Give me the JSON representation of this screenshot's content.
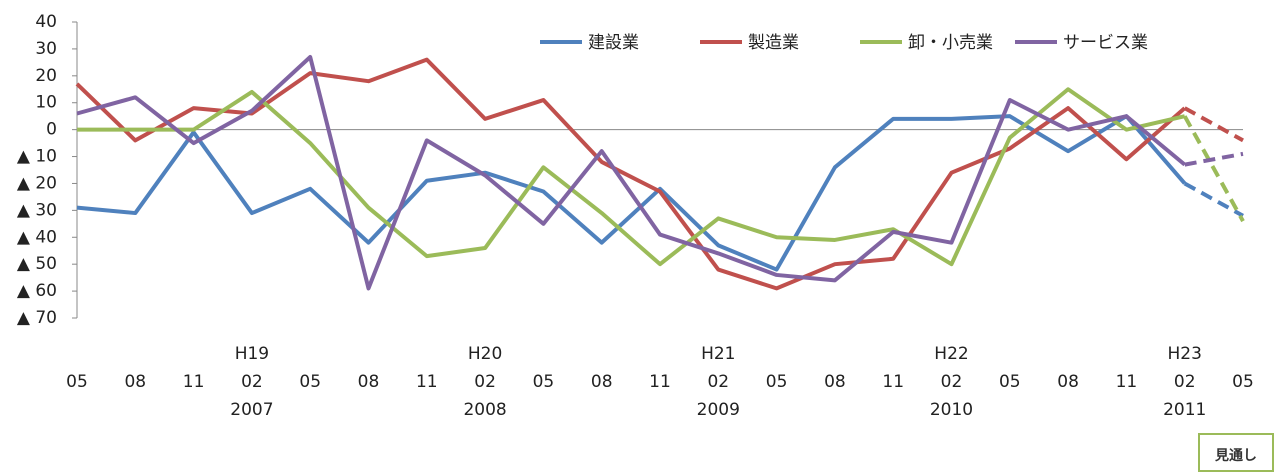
{
  "chart_data": {
    "type": "line",
    "categories": [
      "05",
      "08",
      "11",
      "02",
      "05",
      "08",
      "11",
      "02",
      "05",
      "08",
      "11",
      "02",
      "05",
      "08",
      "11",
      "02",
      "05",
      "08",
      "11",
      "02",
      "05"
    ],
    "era_labels": [
      null,
      null,
      null,
      "H19",
      null,
      null,
      null,
      "H20",
      null,
      null,
      null,
      "H21",
      null,
      null,
      null,
      "H22",
      null,
      null,
      null,
      "H23",
      null
    ],
    "year_labels": [
      null,
      null,
      null,
      "2007",
      null,
      null,
      null,
      "2008",
      null,
      null,
      null,
      "2009",
      null,
      null,
      null,
      "2010",
      null,
      null,
      null,
      "2011",
      null
    ],
    "series": [
      {
        "name": "建設業",
        "color": "#4f81bd",
        "values": [
          -29,
          -31,
          -1,
          -31,
          -22,
          -42,
          -19,
          -16,
          -23,
          -42,
          -22,
          -43,
          -52,
          -14,
          4,
          4,
          5,
          -8,
          5,
          -20,
          -32
        ]
      },
      {
        "name": "製造業",
        "color": "#c0504d",
        "values": [
          17,
          -4,
          8,
          6,
          21,
          18,
          26,
          4,
          11,
          -12,
          -23,
          -52,
          -59,
          -50,
          -48,
          -16,
          -7,
          8,
          -11,
          8,
          -4
        ]
      },
      {
        "name": "卸・小売業",
        "color": "#9bbb59",
        "values": [
          0,
          0,
          0,
          14,
          -5,
          -29,
          -47,
          -44,
          -14,
          -31,
          -50,
          -33,
          -40,
          -41,
          -37,
          -50,
          -3,
          15,
          0,
          5,
          -34
        ]
      },
      {
        "name": "サービス業",
        "color": "#8064a2",
        "values": [
          6,
          12,
          -5,
          7,
          27,
          -59,
          -4,
          -17,
          -35,
          -8,
          -39,
          -46,
          -54,
          -56,
          -38,
          -42,
          11,
          0,
          5,
          -13,
          -9
        ]
      }
    ],
    "dashed_from_index": 19,
    "ylim": [
      -70,
      40
    ],
    "yticks": [
      {
        "value": -70,
        "label": "▲ 70"
      },
      {
        "value": -60,
        "label": "▲ 60"
      },
      {
        "value": -50,
        "label": "▲ 50"
      },
      {
        "value": -40,
        "label": "▲ 40"
      },
      {
        "value": -30,
        "label": "▲ 30"
      },
      {
        "value": -20,
        "label": "▲ 20"
      },
      {
        "value": -10,
        "label": "▲ 10"
      },
      0,
      10,
      20,
      30,
      40
    ],
    "annotation": "見通し",
    "legend": "top-right"
  }
}
